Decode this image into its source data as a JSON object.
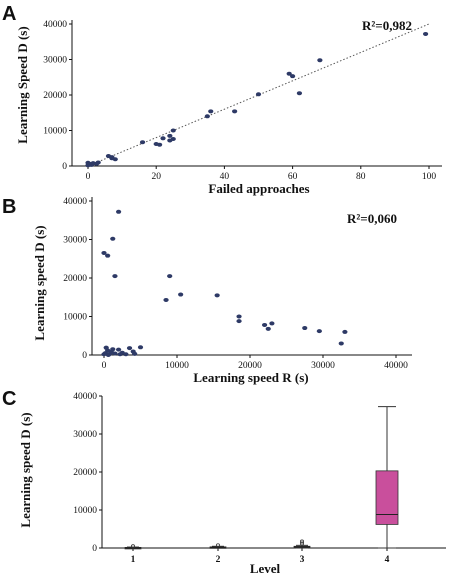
{
  "chart_data": [
    {
      "panel": "A",
      "type": "scatter",
      "xlabel": "Failed approaches",
      "ylabel": "Learning Speed D (s)",
      "xlim": [
        0,
        100
      ],
      "ylim": [
        0,
        40000
      ],
      "x_ticks": [
        0,
        20,
        40,
        60,
        80,
        100
      ],
      "y_ticks": [
        0,
        10000,
        20000,
        30000,
        40000
      ],
      "annotation": "R²=0,982",
      "trendline": {
        "style": "dotted",
        "from": [
          0,
          0
        ],
        "to": [
          100,
          40000
        ]
      },
      "points": [
        [
          0,
          200
        ],
        [
          0.5,
          600
        ],
        [
          1,
          300
        ],
        [
          1.5,
          800
        ],
        [
          0,
          900
        ],
        [
          2.5,
          600
        ],
        [
          3,
          1000
        ],
        [
          6,
          2800
        ],
        [
          7,
          2200
        ],
        [
          8,
          1900
        ],
        [
          7,
          2500
        ],
        [
          16,
          6700
        ],
        [
          20,
          6200
        ],
        [
          21,
          6000
        ],
        [
          22,
          7800
        ],
        [
          24,
          8500
        ],
        [
          24,
          7200
        ],
        [
          25,
          7600
        ],
        [
          25,
          10000
        ],
        [
          35,
          14000
        ],
        [
          36,
          15400
        ],
        [
          43,
          15400
        ],
        [
          50,
          20200
        ],
        [
          59,
          26000
        ],
        [
          60,
          25300
        ],
        [
          62,
          20500
        ],
        [
          68,
          29800
        ],
        [
          99,
          37200
        ]
      ]
    },
    {
      "panel": "B",
      "type": "scatter",
      "xlabel": "Learning speed R (s)",
      "ylabel": "Learning speed D (s)",
      "xlim": [
        0,
        40000
      ],
      "ylim": [
        0,
        40000
      ],
      "x_ticks": [
        0,
        10000,
        20000,
        30000,
        40000
      ],
      "y_ticks": [
        0,
        10000,
        20000,
        30000,
        40000
      ],
      "annotation": "R²=0,060",
      "points": [
        [
          0,
          26500
        ],
        [
          500,
          25800
        ],
        [
          1200,
          30200
        ],
        [
          1500,
          20500
        ],
        [
          2000,
          37200
        ],
        [
          9000,
          20500
        ],
        [
          8500,
          14300
        ],
        [
          10500,
          15700
        ],
        [
          15500,
          15500
        ],
        [
          18500,
          10000
        ],
        [
          18500,
          8800
        ],
        [
          22000,
          7800
        ],
        [
          22500,
          6800
        ],
        [
          23000,
          8200
        ],
        [
          27500,
          7000
        ],
        [
          29500,
          6200
        ],
        [
          32500,
          3000
        ],
        [
          33000,
          6000
        ],
        [
          0,
          200
        ],
        [
          200,
          500
        ],
        [
          500,
          1200
        ],
        [
          800,
          300
        ],
        [
          1000,
          800
        ],
        [
          1500,
          400
        ],
        [
          2000,
          1400
        ],
        [
          2500,
          600
        ],
        [
          3000,
          200
        ],
        [
          3500,
          1800
        ],
        [
          4000,
          900
        ],
        [
          5000,
          2000
        ],
        [
          300,
          1900
        ],
        [
          1200,
          1500
        ],
        [
          2200,
          200
        ],
        [
          4200,
          300
        ],
        [
          600,
          0
        ]
      ]
    },
    {
      "panel": "C",
      "type": "box",
      "xlabel": "Level",
      "ylabel": "Learning speed D (s)",
      "ylim": [
        0,
        40000
      ],
      "y_ticks": [
        0,
        10000,
        20000,
        30000,
        40000
      ],
      "categories": [
        "1",
        "2",
        "3",
        "4"
      ],
      "boxes": [
        {
          "category": "1",
          "min": 0,
          "q1": 50,
          "median": 100,
          "q3": 150,
          "max": 250,
          "outliers": [
            450
          ]
        },
        {
          "category": "2",
          "min": 0,
          "q1": 100,
          "median": 200,
          "q3": 300,
          "max": 450,
          "outliers": [
            700
          ]
        },
        {
          "category": "3",
          "min": 0,
          "q1": 150,
          "median": 300,
          "q3": 450,
          "max": 700,
          "outliers": [
            1200,
            1700
          ]
        },
        {
          "category": "4",
          "min": 0,
          "q1": 6200,
          "median": 8800,
          "q3": 20300,
          "max": 37200,
          "outliers": []
        }
      ],
      "colors": {
        "box4": "#c94f9c",
        "small_box": "#1a1a1a"
      }
    }
  ],
  "colors": {
    "point": "#2e3a66",
    "axis": "#111111",
    "trend": "#555555"
  }
}
